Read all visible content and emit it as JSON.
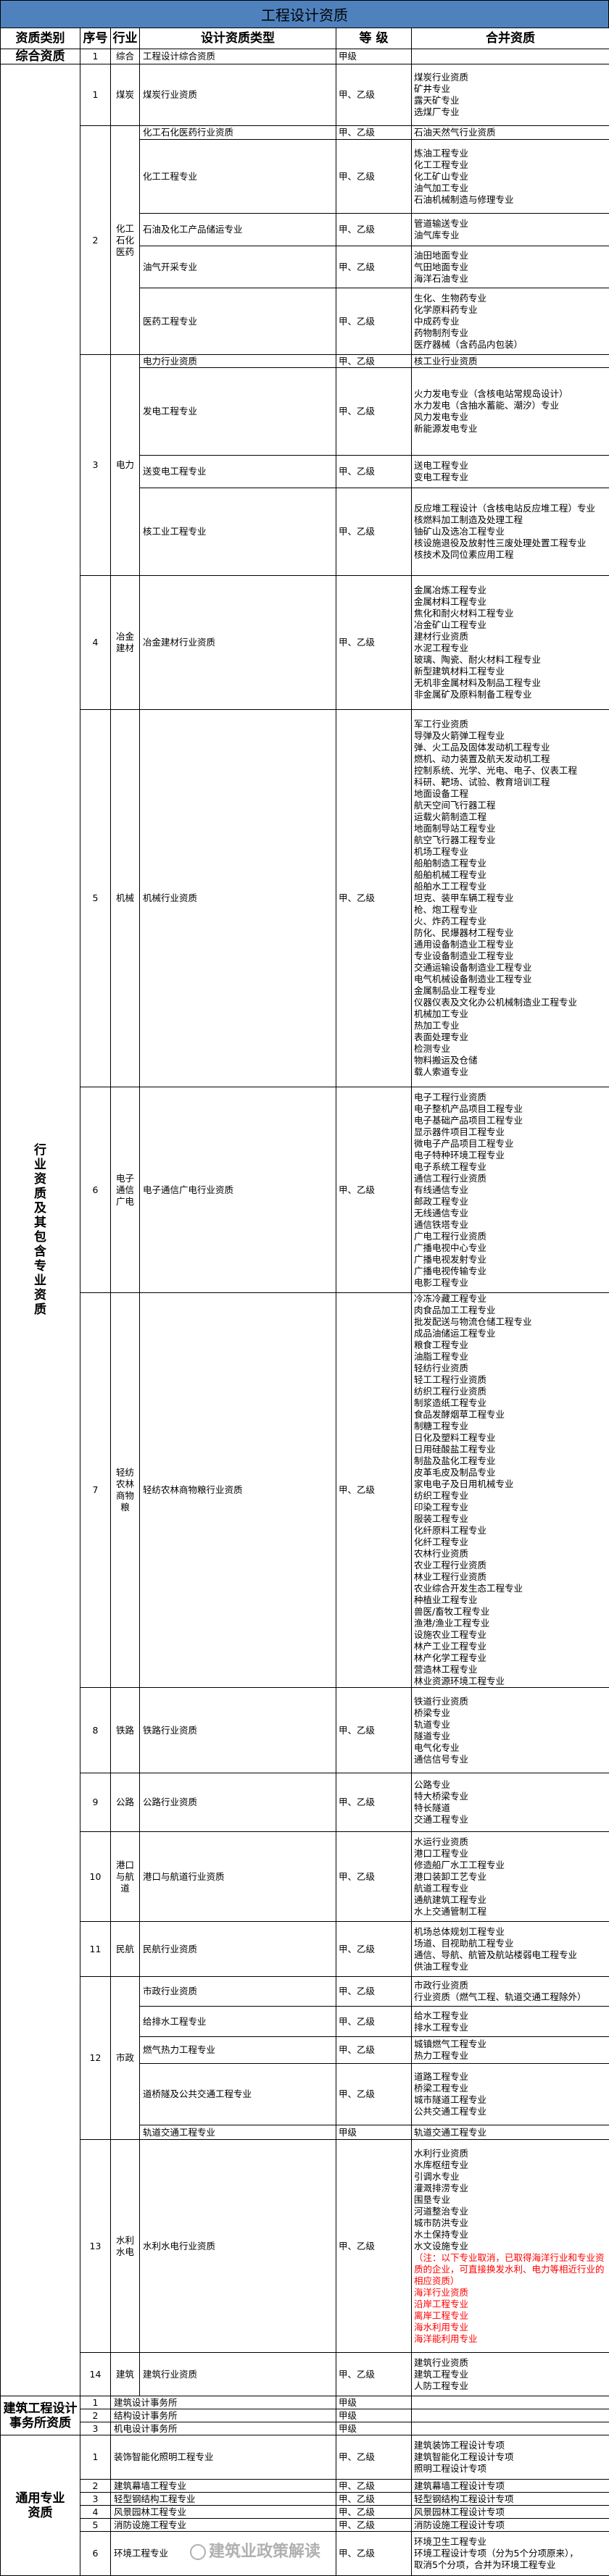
{
  "title": "工程设计资质",
  "headers": [
    "资质类别",
    "序号",
    "行业",
    "设计资质类型",
    "等 级",
    "合并资质"
  ],
  "sections": [
    {
      "category": "综合资质",
      "rows": [
        {
          "no": "1",
          "industry": "综合",
          "items": [
            {
              "type": "工程设计综合资质",
              "grade": "甲级",
              "merged": []
            }
          ]
        }
      ]
    },
    {
      "category": "行业资质及其包含专业资质",
      "rows": [
        {
          "no": "1",
          "industry": "煤炭",
          "items": [
            {
              "type": "煤炭行业资质",
              "grade": "甲、乙级",
              "merged": [
                "煤炭行业资质",
                "矿井专业",
                "露天矿专业",
                "选煤厂专业"
              ]
            }
          ]
        },
        {
          "no": "2",
          "industry": "化工石化医药",
          "items": [
            {
              "type": "化工石化医药行业资质",
              "grade": "甲、乙级",
              "merged": [
                "石油天然气行业资质"
              ]
            },
            {
              "type": "化工工程专业",
              "grade": "甲、乙级",
              "merged": [
                "炼油工程专业",
                "化工工程专业",
                "化工矿山专业",
                "油气加工专业",
                "石油机械制造与修理专业"
              ]
            },
            {
              "type": "石油及化工产品储运专业",
              "grade": "甲、乙级",
              "merged": [
                "管道输送专业",
                "油气库专业"
              ]
            },
            {
              "type": "油气开采专业",
              "grade": "甲、乙级",
              "merged": [
                "油田地面专业",
                "气田地面专业",
                "海洋石油专业"
              ]
            },
            {
              "type": "医药工程专业",
              "grade": "甲、乙级",
              "merged": [
                "生化、生物药专业",
                "化学原料药专业",
                "中成药专业",
                "药物制剂专业",
                "医疗器械（含药品内包装）"
              ]
            }
          ]
        },
        {
          "no": "3",
          "industry": "电力",
          "items": [
            {
              "type": "电力行业资质",
              "grade": "甲、乙级",
              "merged": [
                "核工业行业资质"
              ]
            },
            {
              "type": "发电工程专业",
              "grade": "甲、乙级",
              "merged": [
                "火力发电专业（含核电站常规岛设计）",
                "水力发电（含抽水蓄能、潮汐）专业",
                "风力发电专业",
                "新能源发电专业"
              ]
            },
            {
              "type": "送变电工程专业",
              "grade": "甲、乙级",
              "merged": [
                "送电工程专业",
                "变电工程专业"
              ]
            },
            {
              "type": "核工业工程专业",
              "grade": "甲、乙级",
              "merged": [
                "反应堆工程设计（含核电站反应堆工程）专业",
                "核燃料加工制造及处理工程",
                "铀矿山及选冶工程专业",
                "核设施退役及放射性三废处理处置工程专业",
                "核技术及同位素应用工程"
              ]
            }
          ]
        },
        {
          "no": "4",
          "industry": "冶金建材",
          "items": [
            {
              "type": "冶金建材行业资质",
              "grade": "甲、乙级",
              "merged": [
                "金属冶炼工程专业",
                "金属材料工程专业",
                "焦化和耐火材料工程专业",
                "冶金矿山工程专业",
                "建材行业资质",
                "水泥工程专业",
                "玻璃、陶瓷、耐火材料工程专业",
                "新型建筑材料工程专业",
                "无机非金属材料及制品工程专业",
                "非金属矿及原料制备工程专业"
              ]
            }
          ]
        },
        {
          "no": "5",
          "industry": "机械",
          "items": [
            {
              "type": "机械行业资质",
              "grade": "甲、乙级",
              "merged": [
                "军工行业资质",
                "导弹及火箭弹工程专业",
                "弹、火工品及固体发动机工程专业",
                "燃机、动力装置及航天发动机工程",
                "控制系统、光学、光电、电子、仪表工程",
                "科研、靶场、试验、教育培训工程",
                "地面设备工程",
                "航天空间飞行器工程",
                "运载火箭制造工程",
                "地面制导站工程专业",
                "航空飞行器工程专业",
                "机场工程专业",
                "船舶制造工程专业",
                "船舶机械工程专业",
                "船舶水工工程专业",
                "坦克、装甲车辆工程专业",
                "枪、炮工程专业",
                "火、炸药工程专业",
                "防化、民爆器材工程专业",
                "通用设备制造业工程专业",
                "专业设备制造业工程专业",
                "交通运输设备制造业工程专业",
                "电气机械设备制造业工程专业",
                "金属制品业工程专业",
                "仪器仪表及文化办公机械制造业工程专业",
                "机械加工专业",
                "热加工专业",
                "表面处理专业",
                "检测专业",
                "物料搬运及仓储",
                "载人索道专业"
              ]
            }
          ]
        },
        {
          "no": "6",
          "industry": "电子通信广电",
          "items": [
            {
              "type": "电子通信广电行业资质",
              "grade": "甲、乙级",
              "merged": [
                "电子工程行业资质",
                "电子整机产品项目工程专业",
                "电子基础产品项目工程专业",
                "显示器件项目工程专业",
                "微电子产品项目工程专业",
                "电子特种环境工程专业",
                "电子系统工程专业",
                "通信工程行业资质",
                "有线通信专业",
                "邮政工程专业",
                "无线通信专业",
                "通信铁塔专业",
                "广电工程行业资质",
                "广播电视中心专业",
                "广播电视发射专业",
                "广播电视传输专业",
                "电影工程专业"
              ]
            }
          ]
        },
        {
          "no": "7",
          "industry": "轻纺农林商物粮",
          "items": [
            {
              "type": "轻纺农林商物粮行业资质",
              "grade": "甲、乙级",
              "merged": [
                "冷冻冷藏工程专业",
                "肉食品加工工程专业",
                "批发配送与物流仓储工程专业",
                "成品油储运工程专业",
                "粮食工程专业",
                "油脂工程专业",
                "轻纺行业资质",
                "轻工工程行业资质",
                "纺织工程行业资质",
                "制浆造纸工程专业",
                "食品发酵烟草工程专业",
                "制糖工程专业",
                "日化及塑料工程专业",
                "日用硅酸盐工程专业",
                "制盐及盐化工程专业",
                "皮革毛皮及制品专业",
                "家电电子及日用机械专业",
                "纺织工程专业",
                "印染工程专业",
                "服装工程专业",
                "化纤原料工程专业",
                "化纤工程专业",
                "农林行业资质",
                "农业工程行业资质",
                "林业工程行业资质",
                "农业综合开发生态工程专业",
                "种植业工程专业",
                "兽医/畜牧工程专业",
                "渔港/渔业工程专业",
                "设施农业工程专业",
                "林产工业工程专业",
                "林产化学工程专业",
                "营造林工程专业",
                "林业资源环境工程专业"
              ]
            }
          ]
        },
        {
          "no": "8",
          "industry": "铁路",
          "items": [
            {
              "type": "铁路行业资质",
              "grade": "甲、乙级",
              "merged": [
                "铁道行业资质",
                "桥梁专业",
                "轨道专业",
                "隧道专业",
                "电气化专业",
                "通信信号专业"
              ]
            }
          ]
        },
        {
          "no": "9",
          "industry": "公路",
          "items": [
            {
              "type": "公路行业资质",
              "grade": "甲、乙级",
              "merged": [
                "公路专业",
                "特大桥梁专业",
                "特长隧道",
                "交通工程专业"
              ]
            }
          ]
        },
        {
          "no": "10",
          "industry": "港口与航道",
          "items": [
            {
              "type": "港口与航道行业资质",
              "grade": "甲、乙级",
              "merged": [
                "水运行业资质",
                "港口工程专业",
                "修造船厂水工工程专业",
                "港口装卸工艺专业",
                "航道工程专业",
                "通航建筑工程专业",
                "水上交通管制工程"
              ]
            }
          ]
        },
        {
          "no": "11",
          "industry": "民航",
          "items": [
            {
              "type": "民航行业资质",
              "grade": "甲、乙级",
              "merged": [
                "机场总体规划工程专业",
                "场道、目视助航工程专业",
                "通信、导航、航管及航站楼弱电工程专业",
                "供油工程专业"
              ]
            }
          ]
        },
        {
          "no": "12",
          "industry": "市政",
          "items": [
            {
              "type": "市政行业资质",
              "grade": "甲、乙级",
              "merged": [
                "市政行业资质",
                "行业资质（燃气工程、轨道交通工程除外）"
              ]
            },
            {
              "type": "给排水工程专业",
              "grade": "甲、乙级",
              "merged": [
                "给水工程专业",
                "排水工程专业"
              ]
            },
            {
              "type": "燃气热力工程专业",
              "grade": "甲、乙级",
              "merged": [
                "城镇燃气工程专业",
                "热力工程专业"
              ]
            },
            {
              "type": "道桥隧及公共交通工程专业",
              "grade": "甲、乙级",
              "merged": [
                "道路工程专业",
                "桥梁工程专业",
                "城市隧道工程专业",
                "公共交通工程专业"
              ]
            },
            {
              "type": "轨道交通工程专业",
              "grade": "甲级",
              "merged": [
                "轨道交通工程专业"
              ]
            }
          ]
        },
        {
          "no": "13",
          "industry": "水利水电",
          "items": [
            {
              "type": "水利水电行业资质",
              "grade": "甲、乙级",
              "merged": [
                "水利行业资质",
                "水库枢纽专业",
                "引调水专业",
                "灌溉排涝专业",
                "围垦专业",
                "河道整治专业",
                "城市防洪专业",
                "水土保持专业",
                "水文设施专业"
              ],
              "merged_red": [
                "（注：以下专业取消，已取得海洋行业和专业资质的企业，可直接换发水利、电力等相近行业的相应资质）",
                "海洋行业资质",
                "沿岸工程专业",
                "离岸工程专业",
                "海水利用专业",
                "海洋能利用专业"
              ]
            }
          ]
        },
        {
          "no": "14",
          "industry": "建筑",
          "items": [
            {
              "type": "建筑行业资质",
              "grade": "甲、乙级",
              "merged": [
                "建筑行业资质",
                "建筑工程专业",
                "人防工程专业"
              ]
            }
          ]
        }
      ]
    },
    {
      "category": "建筑工程设计事务所资质",
      "no_industry": true,
      "rows": [
        {
          "no": "1",
          "items": [
            {
              "type": "建筑设计事务所",
              "grade": "甲级",
              "merged": []
            }
          ]
        },
        {
          "no": "2",
          "items": [
            {
              "type": "结构设计事务所",
              "grade": "甲级",
              "merged": []
            }
          ]
        },
        {
          "no": "3",
          "items": [
            {
              "type": "机电设计事务所",
              "grade": "甲级",
              "merged": []
            }
          ]
        }
      ]
    },
    {
      "category": "通用专业资质",
      "no_industry": true,
      "rows": [
        {
          "no": "1",
          "items": [
            {
              "type": "装饰智能化照明工程专业",
              "grade": "甲、乙级",
              "merged": [
                "建筑装饰工程设计专项",
                "建筑智能化工程设计专项",
                "照明工程设计专项"
              ]
            }
          ]
        },
        {
          "no": "2",
          "items": [
            {
              "type": "建筑幕墙工程专业",
              "grade": "甲、乙级",
              "merged": [
                "建筑幕墙工程设计专项"
              ]
            }
          ]
        },
        {
          "no": "3",
          "items": [
            {
              "type": "轻型钢结构工程专业",
              "grade": "甲、乙级",
              "merged": [
                "轻型钢结构工程设计专项"
              ]
            }
          ]
        },
        {
          "no": "4",
          "items": [
            {
              "type": "风景园林工程专业",
              "grade": "甲、乙级",
              "merged": [
                "风景园林工程设计专项"
              ]
            }
          ]
        },
        {
          "no": "5",
          "items": [
            {
              "type": "消防设施工程专业",
              "grade": "甲、乙级",
              "merged": [
                "消防设施工程设计专项"
              ]
            }
          ]
        },
        {
          "no": "6",
          "items": [
            {
              "type": "环境工程专业",
              "grade": "甲、乙级",
              "merged": [
                "环境卫生工程专业",
                "环境工程设计专项（分为5个分项原来），",
                "取消5个分项，合并为环境工程专业"
              ]
            }
          ]
        }
      ]
    }
  ],
  "watermark": "建筑业政策解读",
  "colors": {
    "title_bar": "#4f81bd",
    "note_red": "#ff0000",
    "border": "#000000"
  }
}
